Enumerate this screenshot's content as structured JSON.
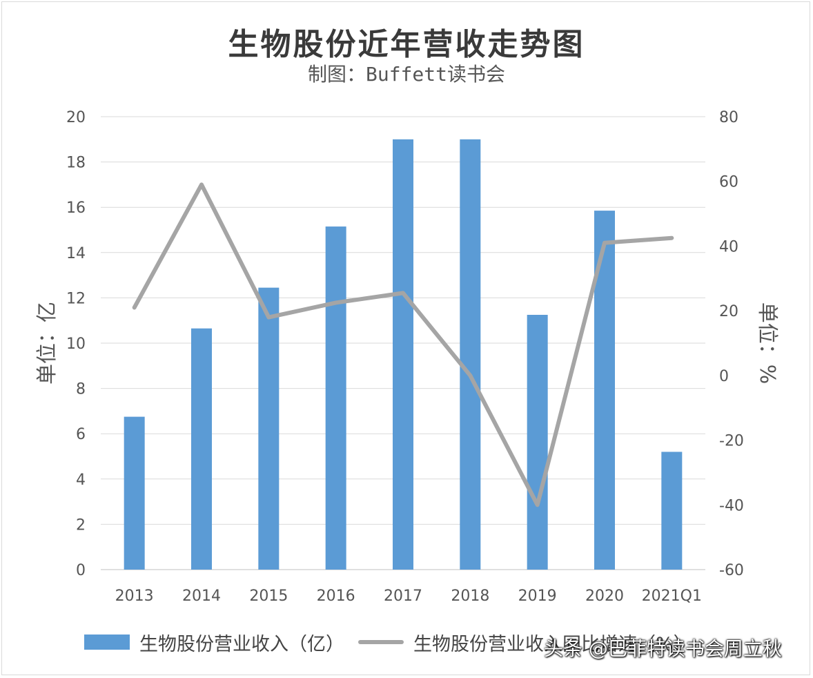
{
  "chart_data": {
    "type": "bar",
    "title": "生物股份近年营收走势图",
    "subtitle": "制图：Buffett读书会",
    "categories": [
      "2013",
      "2014",
      "2015",
      "2016",
      "2017",
      "2018",
      "2019",
      "2020",
      "2021Q1"
    ],
    "series": [
      {
        "name": "生物股份营业收入（亿）",
        "type": "bar",
        "axis": "left",
        "color": "#5b9bd5",
        "values": [
          6.75,
          10.65,
          12.45,
          15.15,
          19.0,
          19.0,
          11.25,
          15.85,
          5.2
        ]
      },
      {
        "name": "生物股份营业收入同比增速（%）",
        "type": "line",
        "axis": "right",
        "color": "#a5a5a5",
        "values": [
          21,
          59,
          18,
          22.5,
          25.5,
          0,
          -40,
          41,
          42.5
        ]
      }
    ],
    "ylabel": "单位：亿",
    "y2label": "单位：%",
    "ylim": [
      0,
      20
    ],
    "y2lim": [
      -60,
      80
    ],
    "yticks": [
      "0",
      "2",
      "4",
      "6",
      "8",
      "10",
      "12",
      "14",
      "16",
      "18",
      "20"
    ],
    "y2ticks": [
      "-60",
      "-40",
      "-20",
      "0",
      "20",
      "40",
      "60",
      "80"
    ],
    "grid": true,
    "legend_position": "bottom"
  },
  "watermark": "头条 @巴菲特读书会周立秋"
}
